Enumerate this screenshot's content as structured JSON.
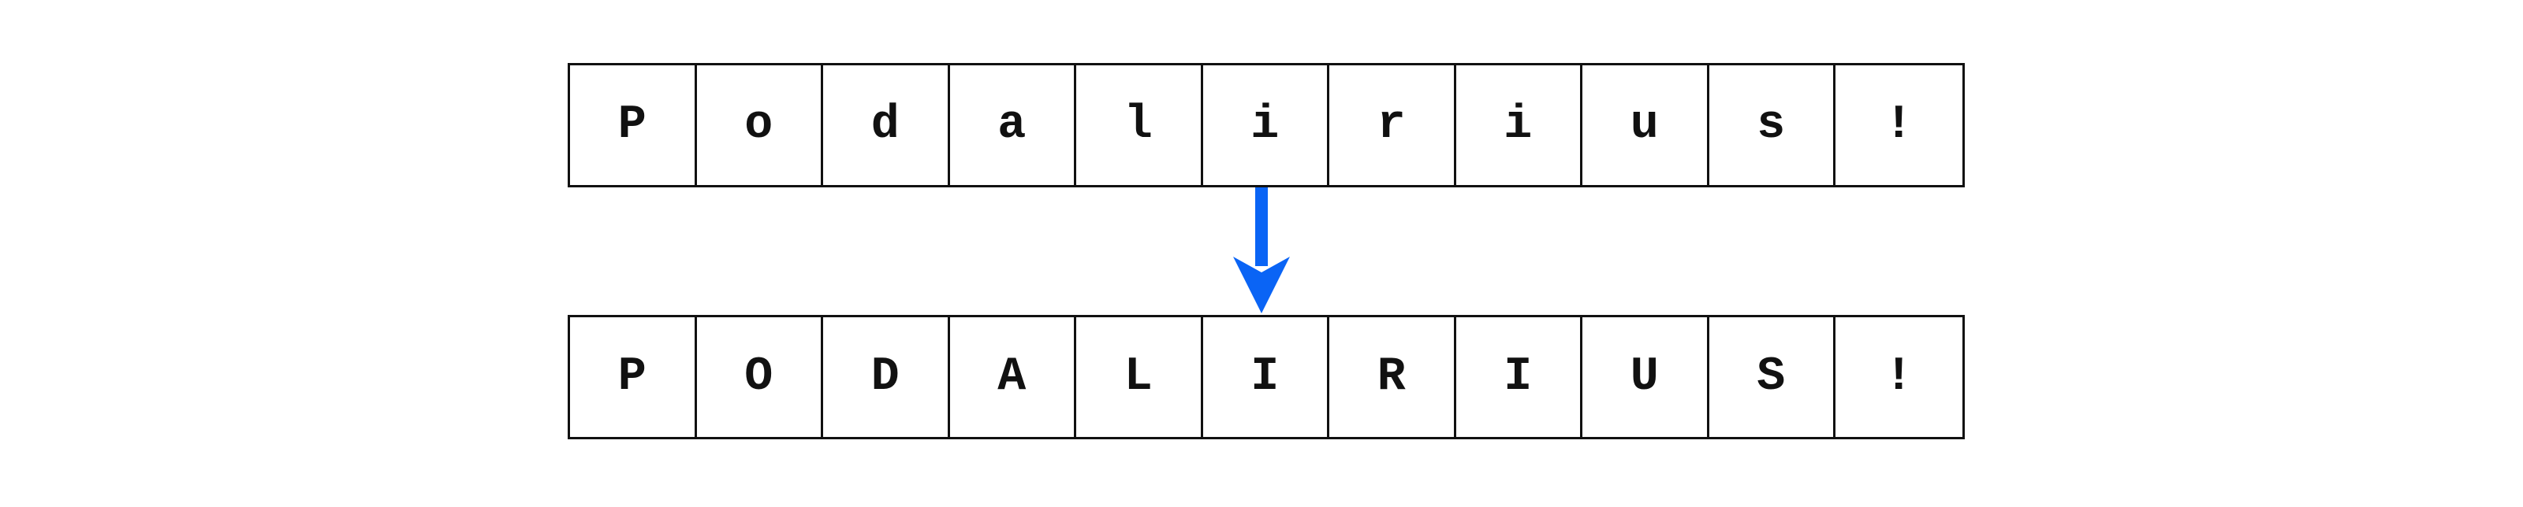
{
  "diagram": {
    "input_chars": [
      "P",
      "o",
      "d",
      "a",
      "l",
      "i",
      "r",
      "i",
      "u",
      "s",
      "!"
    ],
    "output_chars": [
      "P",
      "O",
      "D",
      "A",
      "L",
      "I",
      "R",
      "I",
      "U",
      "S",
      "!"
    ],
    "arrow_color": "#0a64f5",
    "border_color": "#111111"
  }
}
